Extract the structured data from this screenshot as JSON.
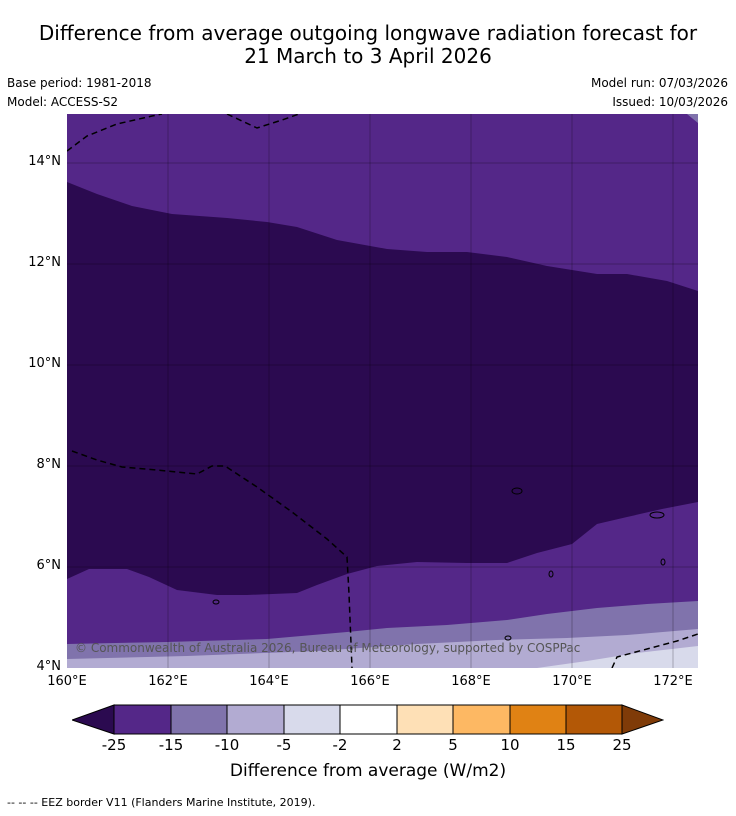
{
  "title_line1": "Difference from average outgoing longwave radiation forecast for",
  "title_line2": "21 March to 3 April 2026",
  "base_period": "Base period: 1981-2018",
  "model": "Model: ACCESS-S2",
  "model_run": "Model run: 07/03/2026",
  "issued": "Issued: 10/03/2026",
  "y_ticks": [
    "14°N",
    "12°N",
    "10°N",
    "8°N",
    "6°N",
    "4°N"
  ],
  "x_ticks": [
    "160°E",
    "162°E",
    "164°E",
    "166°E",
    "168°E",
    "170°E",
    "172°E"
  ],
  "copyright": "© Commonwealth of Australia 2026, Bureau of Meteorology, supported by COSPPac",
  "colorbar": {
    "label": "Difference from average (W/m2)",
    "ticks": [
      "-25",
      "-15",
      "-10",
      "-5",
      "-2",
      "2",
      "5",
      "10",
      "15",
      "25"
    ],
    "colors": [
      "#2b0a50",
      "#542788",
      "#8073ac",
      "#b2abd2",
      "#d8daeb",
      "#ffffff",
      "#fee0b6",
      "#fdb863",
      "#e08214",
      "#b35806",
      "#7f3b08"
    ]
  },
  "footnote": "--  --  -- EEZ border V11 (Flanders Marine Institute, 2019)."
}
